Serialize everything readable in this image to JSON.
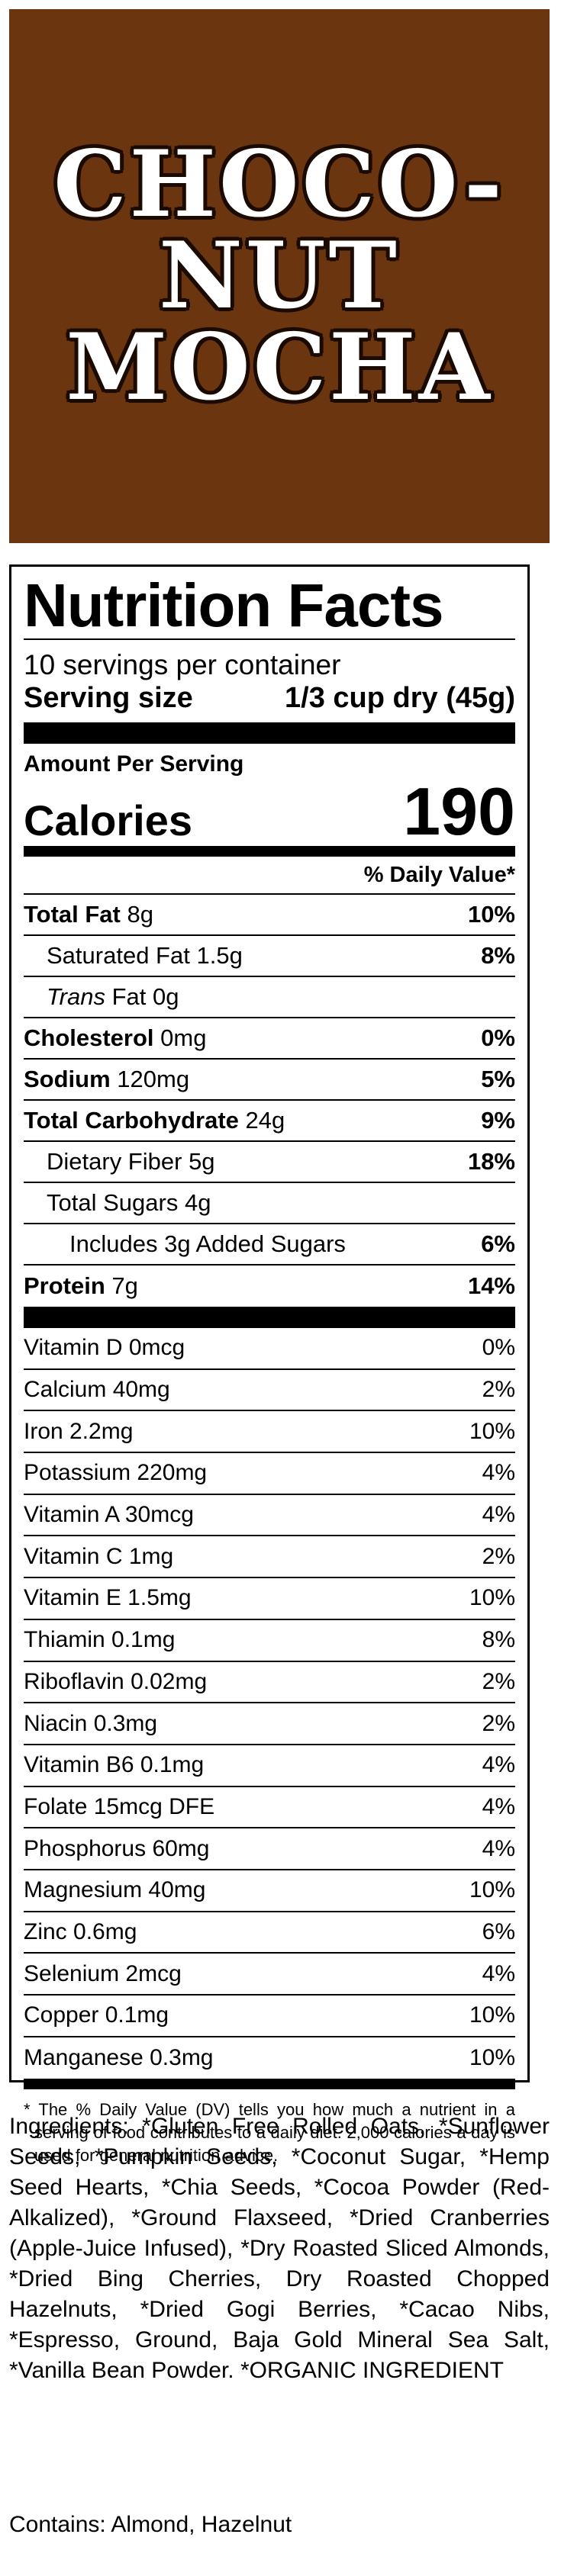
{
  "banner": {
    "title": "CHOCO-\nNUT\nMOCHA",
    "bg_color": "#6b3510"
  },
  "panel": {
    "title": "Nutrition Facts",
    "servings": "10 servings per container",
    "serving_size_label": "Serving size",
    "serving_size_value": "1/3 cup dry (45g)",
    "amount_per_serving": "Amount Per Serving",
    "calories_label": "Calories",
    "calories_value": "190",
    "dv_header": "% Daily Value*",
    "nutrients": [
      {
        "name": "Total Fat",
        "amount": "8g",
        "dv": "10%"
      },
      {
        "name": "Saturated Fat",
        "amount": "1.5g",
        "dv": "8%"
      },
      {
        "name": "Trans",
        "amount": "Fat 0g",
        "dv": ""
      },
      {
        "name": "Cholesterol",
        "amount": "0mg",
        "dv": "0%"
      },
      {
        "name": "Sodium",
        "amount": "120mg",
        "dv": "5%"
      },
      {
        "name": "Total Carbohydrate",
        "amount": "24g",
        "dv": "9%"
      },
      {
        "name": "Dietary Fiber",
        "amount": "5g",
        "dv": "18%"
      },
      {
        "name": "Total Sugars",
        "amount": "4g",
        "dv": ""
      },
      {
        "name": "Includes 3g Added Sugars",
        "amount": "",
        "dv": "6%"
      },
      {
        "name": "Protein",
        "amount": "7g",
        "dv": "14%"
      }
    ],
    "vitamins": [
      {
        "label": "Vitamin D 0mcg",
        "dv": "0%"
      },
      {
        "label": "Calcium 40mg",
        "dv": "2%"
      },
      {
        "label": "Iron 2.2mg",
        "dv": "10%"
      },
      {
        "label": "Potassium 220mg",
        "dv": "4%"
      },
      {
        "label": "Vitamin A 30mcg",
        "dv": "4%"
      },
      {
        "label": "Vitamin C 1mg",
        "dv": "2%"
      },
      {
        "label": "Vitamin E 1.5mg",
        "dv": "10%"
      },
      {
        "label": "Thiamin 0.1mg",
        "dv": "8%"
      },
      {
        "label": "Riboflavin 0.02mg",
        "dv": "2%"
      },
      {
        "label": "Niacin 0.3mg",
        "dv": "2%"
      },
      {
        "label": "Vitamin B6 0.1mg",
        "dv": "4%"
      },
      {
        "label": "Folate 15mcg DFE",
        "dv": "4%"
      },
      {
        "label": "Phosphorus 60mg",
        "dv": "4%"
      },
      {
        "label": "Magnesium 40mg",
        "dv": "10%"
      },
      {
        "label": "Zinc 0.6mg",
        "dv": "6%"
      },
      {
        "label": "Selenium 2mcg",
        "dv": "4%"
      },
      {
        "label": "Copper 0.1mg",
        "dv": "10%"
      },
      {
        "label": "Manganese 0.3mg",
        "dv": "10%"
      }
    ],
    "footnote": "* The % Daily Value (DV) tells you how much a nutrient in a serving of food contributes to a daily diet. 2,000 calories a day is used for general nutrition advice."
  },
  "ingredients": "Ingredients: *Gluten Free Rolled Oats, *Sunflower Seeds, *Pumpkin Seeds, *Coconut Sugar, *Hemp Seed Hearts, *Chia Seeds, *Cocoa Powder (Red-Alkalized), *Ground Flaxseed, *Dried Cranberries (Apple-Juice Infused), *Dry Roasted Sliced Almonds, *Dried Bing Cherries, Dry Roasted Chopped Hazelnuts, *Dried Gogi Berries, *Cacao Nibs, *Espresso, Ground, Baja Gold Mineral Sea Salt, *Vanilla Bean Powder. *ORGANIC INGREDIENT",
  "contains": "Contains: Almond, Hazelnut"
}
